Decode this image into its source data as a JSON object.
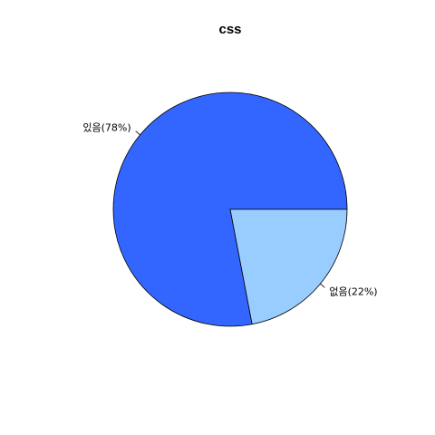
{
  "chart_data": {
    "type": "pie",
    "title": "css",
    "slices": [
      {
        "label": "있음(78%)",
        "value": 78,
        "color": "#3366FF"
      },
      {
        "label": "없음(22%)",
        "value": 22,
        "color": "#99CCFF"
      }
    ],
    "start": "3 o'clock",
    "direction": "counterclockwise",
    "border_color": "#000000"
  }
}
